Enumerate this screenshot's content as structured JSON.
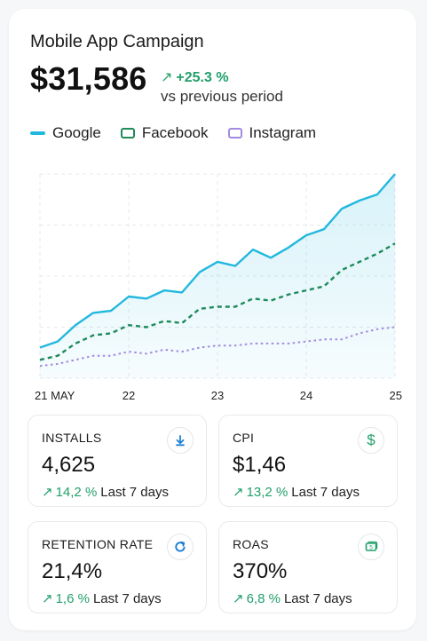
{
  "campaign": {
    "title": "Mobile App Campaign",
    "total": "$31,586",
    "change": "+25.3 %",
    "change_caption": "vs previous period"
  },
  "colors": {
    "google": "#22b8de",
    "facebook": "#1f8a5c",
    "instagram": "#a38be0",
    "positive": "#22a06b"
  },
  "legend": [
    {
      "label": "Google"
    },
    {
      "label": "Facebook"
    },
    {
      "label": "Instagram"
    }
  ],
  "chart_data": {
    "type": "line",
    "x": [
      0,
      0.5,
      1,
      1.5,
      2,
      2.5,
      3,
      3.5,
      4,
      4.5,
      5,
      5.5,
      6,
      6.5,
      7,
      7.5,
      8,
      8.5,
      9,
      9.5,
      10
    ],
    "x_ticks": [
      "21 MAY",
      "22",
      "23",
      "24",
      "25"
    ],
    "ylim": [
      0,
      100
    ],
    "grid": true,
    "series": [
      {
        "name": "Google",
        "style": "solid",
        "fill": true,
        "values": [
          15,
          18,
          26,
          32,
          33,
          40,
          39,
          43,
          42,
          52,
          57,
          55,
          63,
          59,
          64,
          70,
          73,
          83,
          87,
          90,
          100
        ]
      },
      {
        "name": "Facebook",
        "style": "dashed",
        "values": [
          9,
          11,
          17,
          21,
          22,
          26,
          25,
          28,
          27,
          34,
          35,
          35,
          39,
          38,
          41,
          43,
          45,
          53,
          57,
          61,
          66
        ]
      },
      {
        "name": "Instagram",
        "style": "dotted",
        "values": [
          6,
          7,
          9,
          11,
          11,
          13,
          12,
          14,
          13,
          15,
          16,
          16,
          17,
          17,
          17,
          18,
          19,
          19,
          22,
          24,
          25
        ]
      }
    ]
  },
  "kpis": [
    {
      "label": "INSTALLS",
      "value": "4,625",
      "change": "14,2 %",
      "period": "Last 7 days",
      "icon": "download-icon"
    },
    {
      "label": "CPI",
      "value": "$1,46",
      "change": "13,2 %",
      "period": "Last 7 days",
      "icon": "dollar-icon"
    },
    {
      "label": "RETENTION RATE",
      "value": "21,4%",
      "change": "1,6 %",
      "period": "Last 7 days",
      "icon": "refresh-icon"
    },
    {
      "label": "ROAS",
      "value": "370%",
      "change": "6,8 %",
      "period": "Last 7 days",
      "icon": "cash-icon"
    }
  ]
}
